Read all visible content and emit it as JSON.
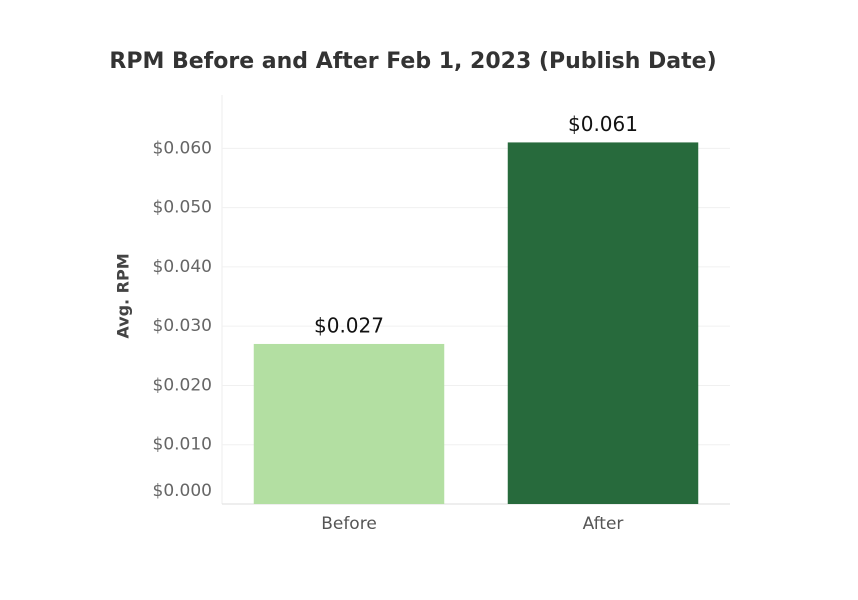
{
  "chart_data": {
    "type": "bar",
    "title": "RPM Before and After Feb 1, 2023 (Publish Date)",
    "y_label": "Avg. RPM",
    "categories": [
      "Before",
      "After"
    ],
    "values": [
      0.027,
      0.061
    ],
    "value_labels": [
      "$0.027",
      "$0.061"
    ],
    "colors": [
      "#b3dfa2",
      "#276a3c"
    ],
    "ylim": [
      0,
      0.069
    ],
    "yticks": [
      {
        "value": 0,
        "label": "$0.000"
      },
      {
        "value": 0.01,
        "label": "$0.010"
      },
      {
        "value": 0.02,
        "label": "$0.020"
      },
      {
        "value": 0.03,
        "label": "$0.030"
      },
      {
        "value": 0.04,
        "label": "$0.040"
      },
      {
        "value": 0.05,
        "label": "$0.050"
      },
      {
        "value": 0.06,
        "label": "$0.060"
      }
    ],
    "grid": true
  }
}
